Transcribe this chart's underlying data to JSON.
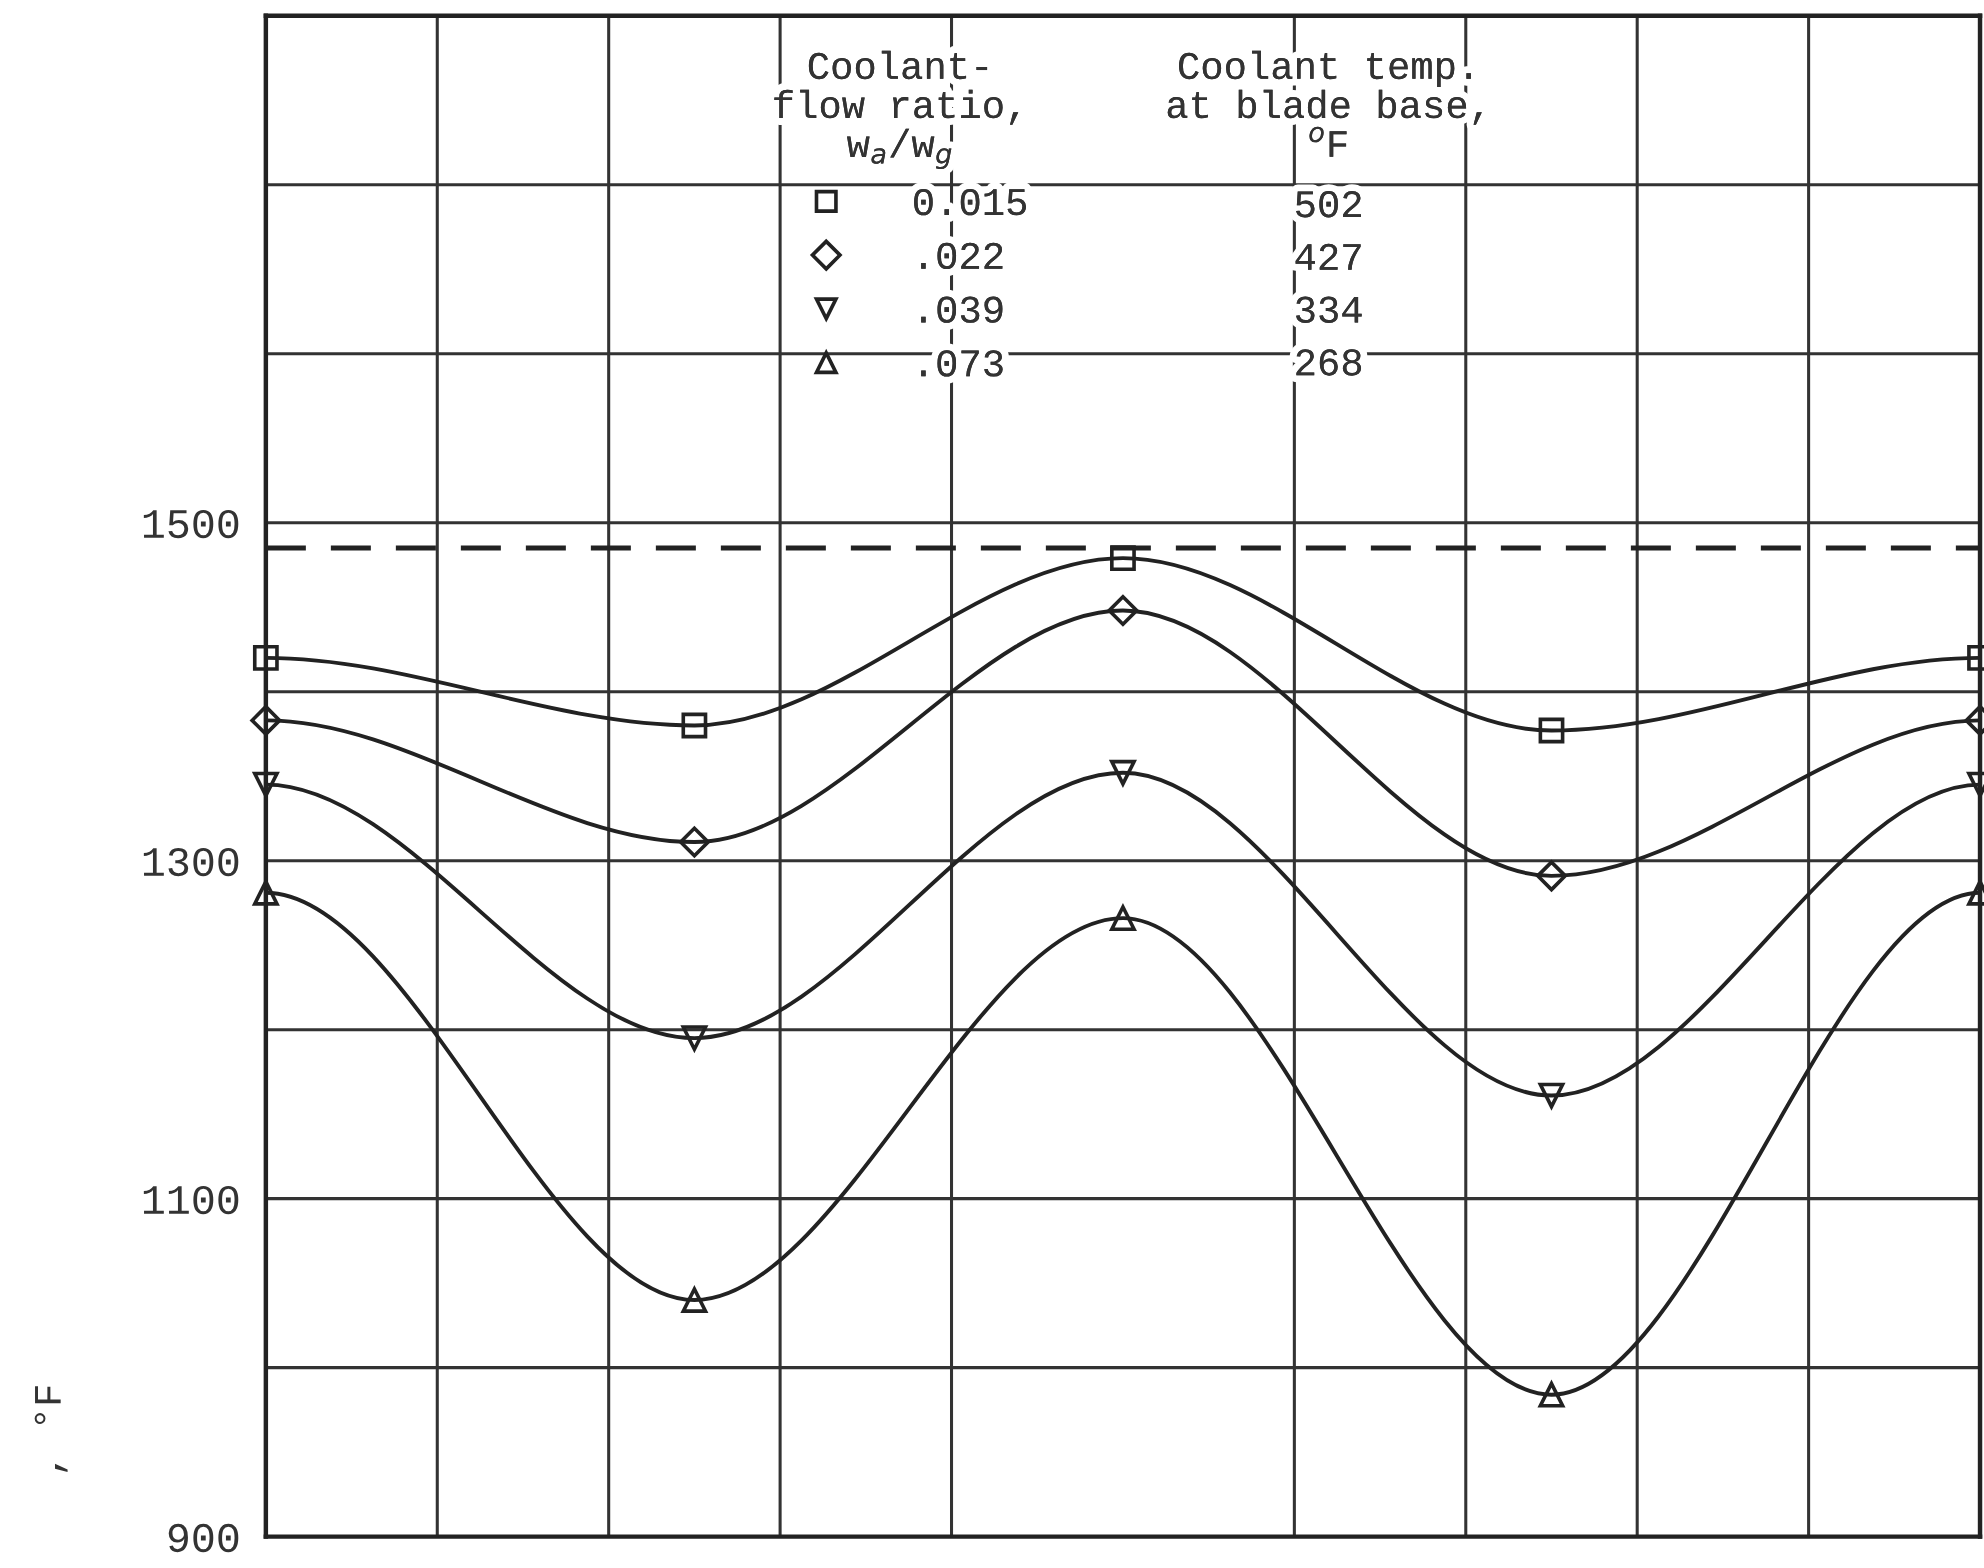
{
  "chart_data": {
    "type": "line",
    "ylabel": ", °F",
    "categories": [
      null,
      null,
      null,
      null,
      null
    ],
    "series": [
      {
        "name": "0.015",
        "color": "#222222",
        "marker": "square",
        "values": [
          1420,
          1380,
          1479,
          1377,
          1420
        ]
      },
      {
        "name": ".022",
        "color": "#222222",
        "marker": "diamond",
        "values": [
          1383,
          1311,
          1448,
          1291,
          1383
        ]
      },
      {
        "name": ".039",
        "color": "#222222",
        "marker": "triangle_down",
        "values": [
          1345,
          1195,
          1352,
          1161,
          1345
        ]
      },
      {
        "name": ".073",
        "color": "#222222",
        "marker": "triangle",
        "values": [
          1281,
          1040,
          1266,
          984,
          1281
        ]
      }
    ],
    "legend_title": "Coolant-\nflow ratio,\nw$_{a}$/w$_{g}$",
    "annotations": [
      "Coolant temp.\nat blade base,\n$^{o}$F",
      "502",
      "427",
      "334",
      "268"
    ],
    "ref_lines": [
      {
        "axis": "y",
        "value": 1485,
        "line_style": "dashed",
        "color": "#222222"
      }
    ],
    "ylim": [
      900,
      1800
    ],
    "yticks": [
      900,
      {
        "value": 1000,
        "label": null
      },
      1100,
      {
        "value": 1200,
        "label": null
      },
      1300,
      {
        "value": 1400,
        "label": null
      },
      1500,
      {
        "value": 1600,
        "label": null
      },
      {
        "value": 1700,
        "label": null
      }
    ],
    "grid": true,
    "legend": "top",
    "line_style": "solid",
    "tick_labels": "y"
  }
}
